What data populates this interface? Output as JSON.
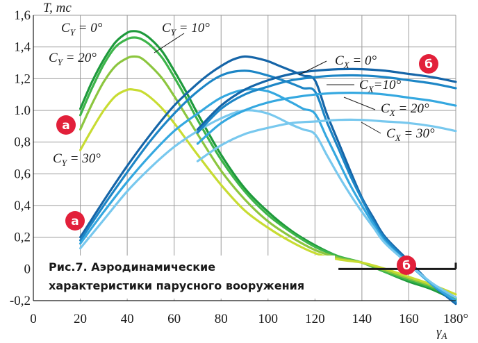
{
  "chart_data": {
    "type": "line",
    "title": "",
    "caption": [
      "Рис.7. Аэродинамические",
      "характеристики парусного вооружения"
    ],
    "ylabel": "T, тс",
    "xlabel": "γA",
    "xlim": [
      0,
      180
    ],
    "ylim": [
      -0.2,
      1.6
    ],
    "x_tick_labels": [
      "0",
      "20",
      "40",
      "60",
      "80",
      "100",
      "120",
      "140",
      "160",
      "180°"
    ],
    "y_tick_labels": [
      "1,6",
      "1,4",
      "1,2",
      "1.0",
      "0,8",
      "0,6",
      "0,4",
      "0,2",
      "0",
      "-0,2"
    ],
    "grid": true,
    "series": [
      {
        "name": "C_Y = 0°",
        "group": "Y",
        "color": "#1e9a3c",
        "x": [
          20,
          25,
          30,
          35,
          40,
          43,
          46,
          50,
          55,
          60,
          65,
          70,
          80,
          90,
          100,
          110,
          120,
          130,
          140,
          150,
          160,
          170,
          180
        ],
        "y": [
          1.01,
          1.18,
          1.32,
          1.43,
          1.49,
          1.5,
          1.49,
          1.45,
          1.37,
          1.25,
          1.12,
          0.98,
          0.72,
          0.51,
          0.36,
          0.24,
          0.15,
          0.08,
          0.04,
          -0.02,
          -0.08,
          -0.13,
          -0.2
        ]
      },
      {
        "name": "C_Y = 10°",
        "group": "Y",
        "color": "#3db54a",
        "x": [
          20,
          25,
          30,
          35,
          40,
          43,
          46,
          50,
          55,
          60,
          65,
          70,
          80,
          90,
          100,
          110,
          120,
          130,
          140,
          150,
          160,
          170,
          180
        ],
        "y": [
          0.97,
          1.14,
          1.29,
          1.4,
          1.45,
          1.46,
          1.45,
          1.41,
          1.33,
          1.21,
          1.08,
          0.94,
          0.69,
          0.49,
          0.34,
          0.23,
          0.14,
          0.08,
          0.04,
          -0.02,
          -0.07,
          -0.12,
          -0.19
        ]
      },
      {
        "name": "C_Y = 20°",
        "group": "Y",
        "color": "#8cc63f",
        "x": [
          20,
          25,
          30,
          35,
          40,
          43,
          46,
          50,
          55,
          60,
          65,
          70,
          80,
          90,
          100,
          110,
          120,
          130,
          140,
          150,
          160,
          170,
          180
        ],
        "y": [
          0.88,
          1.04,
          1.18,
          1.28,
          1.33,
          1.34,
          1.33,
          1.28,
          1.2,
          1.09,
          0.97,
          0.85,
          0.62,
          0.44,
          0.3,
          0.2,
          0.12,
          0.07,
          0.04,
          -0.01,
          -0.06,
          -0.11,
          -0.18
        ]
      },
      {
        "name": "C_Y = 30°",
        "group": "Y",
        "color": "#c8dc32",
        "x": [
          20,
          25,
          30,
          35,
          40,
          43,
          46,
          50,
          55,
          60,
          65,
          70,
          80,
          90,
          100,
          110,
          120,
          130,
          140,
          150,
          160,
          170,
          180
        ],
        "y": [
          0.75,
          0.88,
          1.0,
          1.09,
          1.13,
          1.13,
          1.12,
          1.08,
          1.01,
          0.92,
          0.82,
          0.72,
          0.53,
          0.37,
          0.26,
          0.17,
          0.1,
          0.06,
          0.04,
          0.0,
          -0.05,
          -0.1,
          -0.16
        ]
      },
      {
        "name": "C_X = 0°",
        "group": "X",
        "color": "#1565a8",
        "x": [
          20,
          30,
          40,
          50,
          60,
          70,
          75,
          80,
          85,
          90,
          95,
          100,
          105,
          110,
          115,
          120,
          125,
          130,
          135,
          140,
          145,
          150,
          160,
          170,
          180
        ],
        "y": [
          0.2,
          0.43,
          0.65,
          0.85,
          1.03,
          1.17,
          1.23,
          1.28,
          1.32,
          1.34,
          1.33,
          1.31,
          1.28,
          1.25,
          1.22,
          1.19,
          0.98,
          0.8,
          0.62,
          0.45,
          0.32,
          0.2,
          0.05,
          -0.1,
          -0.22
        ]
      },
      {
        "name": "C_X = 10°",
        "group": "X",
        "color": "#1d86c6",
        "x": [
          20,
          30,
          40,
          50,
          60,
          70,
          80,
          90,
          100,
          110,
          115,
          120,
          125,
          130,
          135,
          140,
          145,
          150,
          160,
          170,
          180
        ],
        "y": [
          0.18,
          0.4,
          0.61,
          0.81,
          0.98,
          1.12,
          1.22,
          1.25,
          1.22,
          1.17,
          1.14,
          1.12,
          0.93,
          0.76,
          0.59,
          0.44,
          0.3,
          0.19,
          0.04,
          -0.1,
          -0.21
        ]
      },
      {
        "name": "C_X = 20°",
        "group": "X",
        "color": "#35a8e0",
        "x": [
          20,
          30,
          40,
          50,
          60,
          70,
          80,
          90,
          100,
          110,
          115,
          120,
          125,
          130,
          135,
          140,
          145,
          150,
          160,
          170,
          180
        ],
        "y": [
          0.16,
          0.36,
          0.55,
          0.72,
          0.87,
          0.98,
          1.08,
          1.13,
          1.12,
          1.05,
          1.01,
          0.98,
          0.83,
          0.68,
          0.53,
          0.4,
          0.28,
          0.17,
          0.03,
          -0.1,
          -0.2
        ]
      },
      {
        "name": "C_X = 30°",
        "group": "X",
        "color": "#78c8ee",
        "x": [
          20,
          30,
          40,
          50,
          60,
          70,
          80,
          90,
          100,
          110,
          115,
          120,
          125,
          130,
          135,
          140,
          145,
          150,
          160,
          170,
          180
        ],
        "y": [
          0.13,
          0.31,
          0.49,
          0.64,
          0.77,
          0.87,
          0.95,
          1.0,
          0.98,
          0.91,
          0.88,
          0.85,
          0.72,
          0.59,
          0.47,
          0.36,
          0.26,
          0.16,
          0.03,
          -0.09,
          -0.18
        ]
      },
      {
        "name": "C_X = 0° (б)",
        "group": "X",
        "color": "#1565a8",
        "x": [
          70,
          80,
          90,
          100,
          110,
          120,
          130,
          140,
          150,
          160,
          170,
          180
        ],
        "y": [
          0.88,
          1.03,
          1.13,
          1.19,
          1.23,
          1.25,
          1.26,
          1.26,
          1.25,
          1.23,
          1.21,
          1.18
        ]
      },
      {
        "name": "C_X = 10° (б)",
        "group": "X",
        "color": "#1d86c6",
        "x": [
          70,
          80,
          90,
          100,
          110,
          120,
          130,
          140,
          150,
          160,
          170,
          180
        ],
        "y": [
          0.86,
          1.01,
          1.1,
          1.15,
          1.19,
          1.21,
          1.22,
          1.22,
          1.21,
          1.19,
          1.17,
          1.14
        ]
      },
      {
        "name": "C_X = 20° (б)",
        "group": "X",
        "color": "#35a8e0",
        "x": [
          70,
          80,
          90,
          100,
          110,
          120,
          130,
          140,
          150,
          160,
          170,
          180
        ],
        "y": [
          0.79,
          0.92,
          1.0,
          1.05,
          1.08,
          1.1,
          1.11,
          1.11,
          1.1,
          1.08,
          1.06,
          1.03
        ]
      },
      {
        "name": "C_X = 30° (б)",
        "group": "X",
        "color": "#78c8ee",
        "x": [
          70,
          80,
          90,
          100,
          110,
          120,
          130,
          140,
          150,
          160,
          170,
          180
        ],
        "y": [
          0.68,
          0.78,
          0.85,
          0.89,
          0.92,
          0.93,
          0.94,
          0.94,
          0.93,
          0.92,
          0.9,
          0.87
        ]
      }
    ],
    "curve_labels": [
      {
        "text": "C",
        "sub": "Y",
        "rest": " = 0°"
      },
      {
        "text": "C",
        "sub": "Y",
        "rest": " = 10°"
      },
      {
        "text": "C",
        "sub": "Y",
        "rest": " = 20°"
      },
      {
        "text": "C",
        "sub": "Y",
        "rest": " = 30°"
      },
      {
        "text": "C",
        "sub": "X",
        "rest": " = 0°"
      },
      {
        "text": "C",
        "sub": "X",
        "rest": "=10°"
      },
      {
        "text": "C",
        "sub": "X",
        "rest": " = 20°"
      },
      {
        "text": "C",
        "sub": "X",
        "rest": " = 30°"
      }
    ],
    "markers": [
      {
        "letter": "а",
        "color": "#e2203a"
      },
      {
        "letter": "а",
        "color": "#e2203a"
      },
      {
        "letter": "б",
        "color": "#e2203a"
      },
      {
        "letter": "б",
        "color": "#e2203a"
      }
    ],
    "grid_color": "#9a9a9a",
    "axis_color": "#1a1a1a"
  }
}
